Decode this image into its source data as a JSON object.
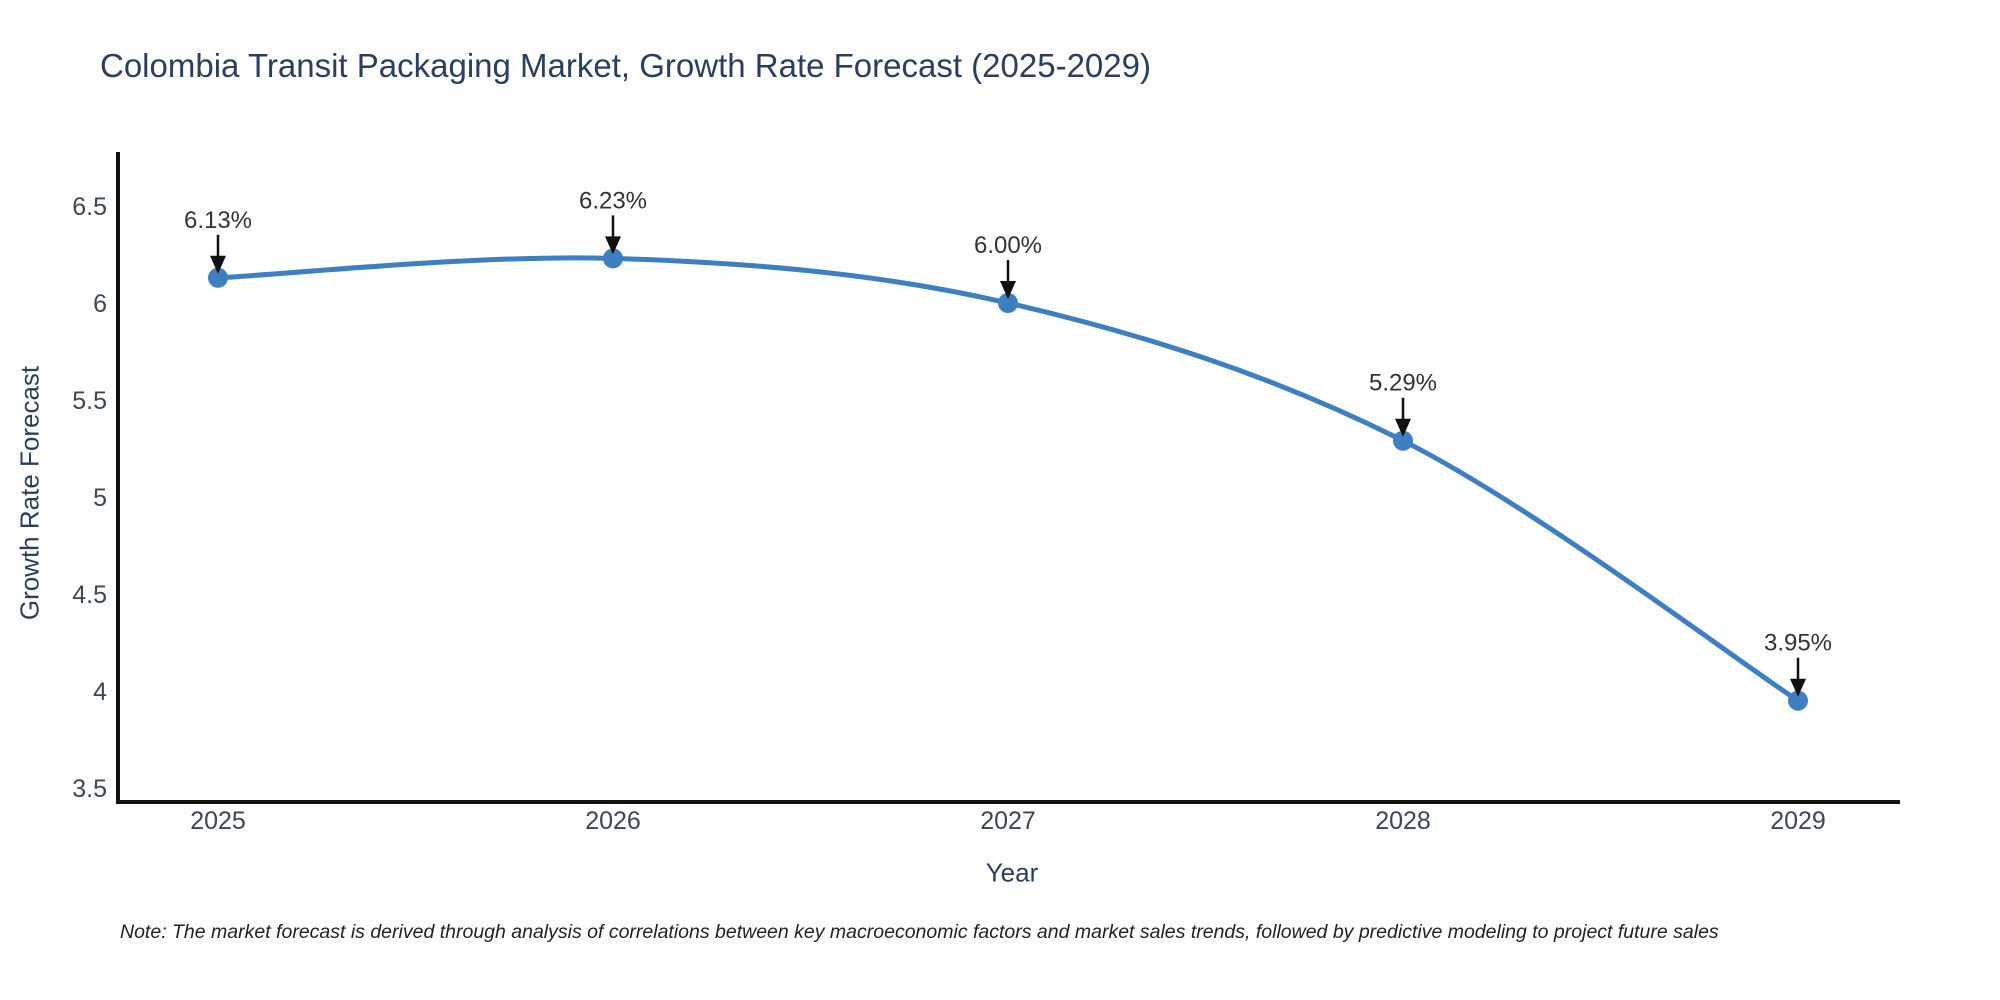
{
  "footnote": {
    "text": "Note: The market forecast is derived through analysis of correlations between key macroeconomic factors and market sales trends, followed by predictive modeling to project future sales"
  },
  "chart_data": {
    "type": "line",
    "title": "Colombia Transit Packaging Market, Growth Rate Forecast (2025-2029)",
    "xlabel": "Year",
    "ylabel": "Growth Rate Forecast",
    "categories": [
      "2025",
      "2026",
      "2027",
      "2028",
      "2029"
    ],
    "values": [
      6.13,
      6.23,
      6.0,
      5.29,
      3.95
    ],
    "point_labels": [
      "6.13%",
      "6.23%",
      "6.00%",
      "5.29%",
      "3.95%"
    ],
    "ylim": [
      3.5,
      6.5
    ],
    "ytick_values": [
      6.5,
      6,
      5.5,
      5,
      4.5,
      4,
      3.5
    ],
    "ytick_labels": [
      "6.5",
      "6",
      "5.5",
      "5",
      "4.5",
      "4",
      "3.5"
    ],
    "line_shape": "spline",
    "grid": false,
    "legend_position": "none",
    "colors": {
      "line": "#3E7FC1",
      "marker": "#3E7FC1",
      "axis_line": "#111111",
      "tick_text": "#3b4754",
      "title_text": "#2a3f5f",
      "annotation_text": "#333333",
      "annotation_arrow": "#111111",
      "background": "#ffffff"
    }
  }
}
